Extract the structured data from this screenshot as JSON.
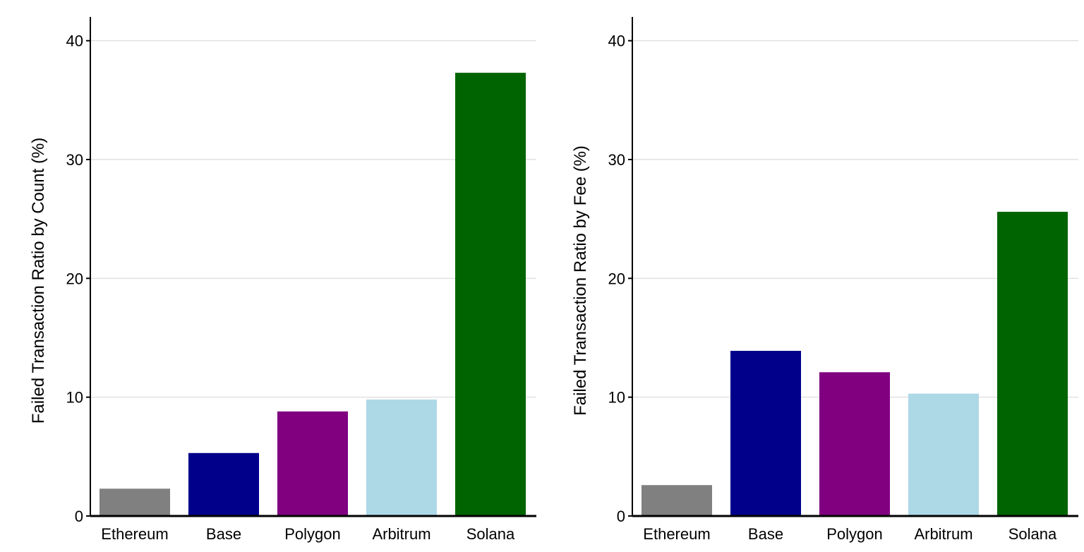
{
  "chart_data": [
    {
      "type": "bar",
      "categories": [
        "Ethereum",
        "Base",
        "Polygon",
        "Arbitrum",
        "Solana"
      ],
      "values": [
        2.3,
        5.3,
        8.8,
        9.8,
        37.3
      ],
      "colors": [
        "#808080",
        "#00008b",
        "#800080",
        "#add8e6",
        "#006400"
      ],
      "title": "",
      "xlabel": "",
      "ylabel": "Failed Transaction Ratio by Count (%)",
      "ylim": [
        0,
        42
      ],
      "yticks": [
        0,
        10,
        20,
        30,
        40
      ],
      "grid": "horizontal",
      "legend": "none"
    },
    {
      "type": "bar",
      "categories": [
        "Ethereum",
        "Base",
        "Polygon",
        "Arbitrum",
        "Solana"
      ],
      "values": [
        2.6,
        13.9,
        12.1,
        10.3,
        25.6
      ],
      "colors": [
        "#808080",
        "#00008b",
        "#800080",
        "#add8e6",
        "#006400"
      ],
      "title": "",
      "xlabel": "",
      "ylabel": "Failed Transaction Ratio by Fee (%)",
      "ylim": [
        0,
        42
      ],
      "yticks": [
        0,
        10,
        20,
        30,
        40
      ],
      "grid": "horizontal",
      "legend": "none"
    }
  ]
}
